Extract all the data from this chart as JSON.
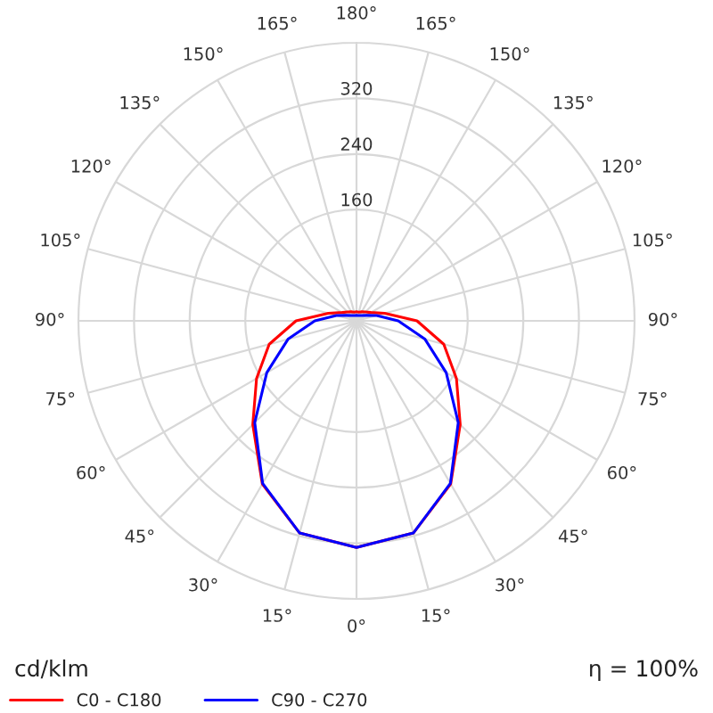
{
  "chart_data": {
    "type": "radar",
    "categories": [
      "180°",
      "165°",
      "150°",
      "135°",
      "120°",
      "105°",
      "90°",
      "75°",
      "60°",
      "45°",
      "30°",
      "15°",
      "0°",
      "15°",
      "30°",
      "45°",
      "60°",
      "75°",
      "90°",
      "105°",
      "120°",
      "135°",
      "150°",
      "165°"
    ],
    "series": [
      {
        "name": "C0 - C180",
        "color": "#ff0000",
        "values": [
          13,
          13,
          15,
          18,
          24,
          42,
          87,
          130,
          166,
          211,
          271,
          316,
          326,
          316,
          271,
          211,
          166,
          130,
          87,
          42,
          24,
          18,
          15,
          13
        ]
      },
      {
        "name": "C90 - C270",
        "color": "#0000ff",
        "values": [
          8,
          8,
          9,
          11,
          16,
          30,
          60,
          102,
          149,
          207,
          270,
          316,
          326,
          316,
          270,
          207,
          149,
          102,
          60,
          30,
          16,
          11,
          9,
          8
        ]
      }
    ],
    "ylim": [
      0,
      400
    ],
    "yticks": [
      160,
      240,
      320
    ],
    "grid": true,
    "legend": "bottom left",
    "annotations": [
      "cd/klm",
      "η = 100%"
    ]
  }
}
